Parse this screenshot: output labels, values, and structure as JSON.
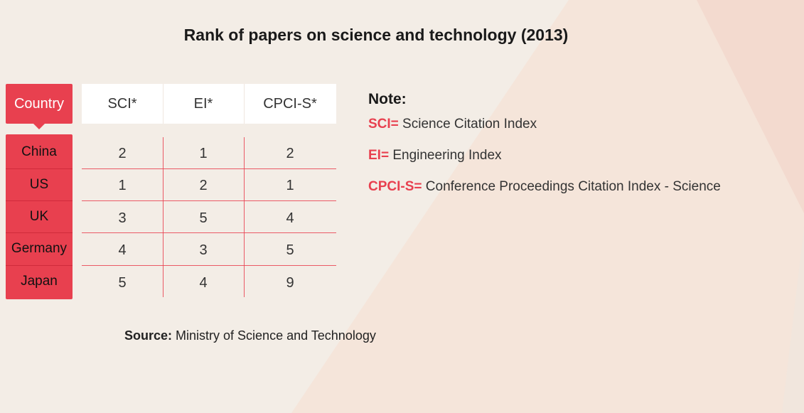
{
  "chart_data": {
    "type": "table",
    "title": "Rank of papers on science and technology (2013)",
    "columns": [
      "Country",
      "SCI*",
      "EI*",
      "CPCI-S*"
    ],
    "rows": [
      {
        "country": "China",
        "values": [
          "2",
          "1",
          "2"
        ]
      },
      {
        "country": "US",
        "values": [
          "1",
          "2",
          "1"
        ]
      },
      {
        "country": "UK",
        "values": [
          "3",
          "5",
          "4"
        ]
      },
      {
        "country": "Germany",
        "values": [
          "4",
          "3",
          "5"
        ]
      },
      {
        "country": "Japan",
        "values": [
          "5",
          "4",
          "9"
        ]
      }
    ]
  },
  "note": {
    "title": "Note:",
    "items": [
      {
        "key": "SCI=",
        "text": " Science Citation Index"
      },
      {
        "key": "EI=",
        "text": " Engineering Index"
      },
      {
        "key": "CPCI-S=",
        "text": " Conference Proceedings Citation Index - Science"
      }
    ]
  },
  "source": {
    "label": "Source:",
    "text": " Ministry of Science and Technology"
  },
  "colors": {
    "accent": "#e8404f",
    "background": "#f3ede6",
    "header_bg": "#ffffff"
  }
}
